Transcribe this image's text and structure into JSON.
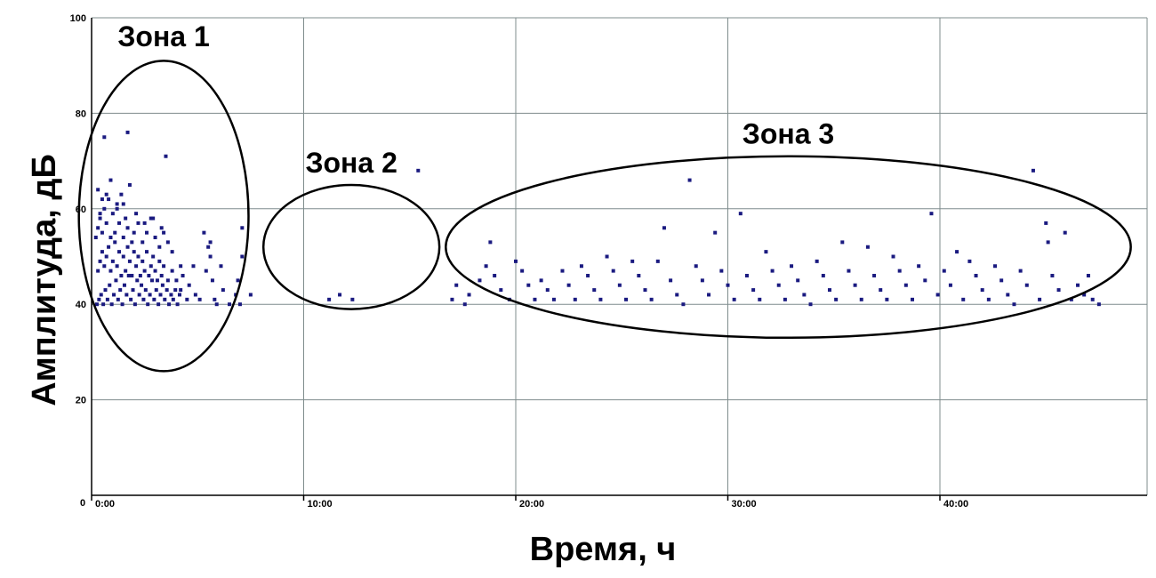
{
  "chart_data": {
    "type": "scatter",
    "xlabel": "Время, ч",
    "ylabel": "Амплитуда, дБ",
    "xlim": [
      0,
      50
    ],
    "ylim": [
      0,
      100
    ],
    "x_ticks": [
      {
        "value": 0,
        "label": "0:00"
      },
      {
        "value": 10,
        "label": "10:00"
      },
      {
        "value": 20,
        "label": "20:00"
      },
      {
        "value": 30,
        "label": "30:00"
      },
      {
        "value": 40,
        "label": "40:00"
      }
    ],
    "y_ticks": [
      {
        "value": 20,
        "label": "20"
      },
      {
        "value": 40,
        "label": "40"
      },
      {
        "value": 60,
        "label": "60"
      },
      {
        "value": 80,
        "label": "80"
      },
      {
        "value": 100,
        "label": "100"
      }
    ],
    "origin_label": "0",
    "grid": true,
    "marker_color": "#1a1a80",
    "zones": [
      {
        "label": "Зона 1",
        "x_range": [
          -0.6,
          7.4
        ],
        "y_range": [
          26,
          91
        ]
      },
      {
        "label": "Зона 2",
        "x_range": [
          8.1,
          16.4
        ],
        "y_range": [
          39,
          65
        ]
      },
      {
        "label": "Зона 3",
        "x_range": [
          16.7,
          49.0
        ],
        "y_range": [
          33,
          71
        ]
      }
    ],
    "series": [
      {
        "points": [
          [
            0.25,
            40
          ],
          [
            0.35,
            41
          ],
          [
            0.45,
            42
          ],
          [
            0.55,
            40
          ],
          [
            0.65,
            43
          ],
          [
            0.75,
            41
          ],
          [
            0.85,
            44
          ],
          [
            0.95,
            40
          ],
          [
            1.05,
            42
          ],
          [
            1.15,
            45
          ],
          [
            1.25,
            41
          ],
          [
            1.35,
            43
          ],
          [
            1.45,
            40
          ],
          [
            1.55,
            44
          ],
          [
            1.65,
            42
          ],
          [
            1.75,
            46
          ],
          [
            1.85,
            41
          ],
          [
            1.95,
            43
          ],
          [
            2.05,
            40
          ],
          [
            2.15,
            45
          ],
          [
            2.25,
            42
          ],
          [
            2.35,
            44
          ],
          [
            2.45,
            41
          ],
          [
            2.55,
            43
          ],
          [
            2.65,
            40
          ],
          [
            2.75,
            42
          ],
          [
            2.85,
            45
          ],
          [
            2.95,
            41
          ],
          [
            3.05,
            43
          ],
          [
            3.15,
            40
          ],
          [
            3.25,
            42
          ],
          [
            3.35,
            44
          ],
          [
            3.45,
            41
          ],
          [
            3.55,
            43
          ],
          [
            3.65,
            40
          ],
          [
            3.75,
            42
          ],
          [
            3.85,
            41
          ],
          [
            3.95,
            43
          ],
          [
            4.05,
            40
          ],
          [
            4.15,
            42
          ],
          [
            0.3,
            47
          ],
          [
            0.4,
            49
          ],
          [
            0.5,
            51
          ],
          [
            0.6,
            48
          ],
          [
            0.7,
            50
          ],
          [
            0.8,
            52
          ],
          [
            0.9,
            47
          ],
          [
            1.0,
            49
          ],
          [
            1.1,
            53
          ],
          [
            1.2,
            48
          ],
          [
            1.3,
            51
          ],
          [
            1.4,
            46
          ],
          [
            1.5,
            50
          ],
          [
            1.6,
            47
          ],
          [
            1.7,
            52
          ],
          [
            1.8,
            49
          ],
          [
            1.9,
            46
          ],
          [
            2.0,
            51
          ],
          [
            2.1,
            48
          ],
          [
            2.2,
            50
          ],
          [
            2.3,
            46
          ],
          [
            2.4,
            49
          ],
          [
            2.5,
            47
          ],
          [
            2.6,
            51
          ],
          [
            2.7,
            46
          ],
          [
            2.8,
            48
          ],
          [
            2.9,
            50
          ],
          [
            3.0,
            47
          ],
          [
            3.1,
            45
          ],
          [
            3.2,
            49
          ],
          [
            3.3,
            46
          ],
          [
            3.4,
            48
          ],
          [
            3.6,
            45
          ],
          [
            3.8,
            47
          ],
          [
            4.0,
            45
          ],
          [
            0.2,
            54
          ],
          [
            0.3,
            56
          ],
          [
            0.4,
            58
          ],
          [
            0.5,
            55
          ],
          [
            0.6,
            60
          ],
          [
            0.7,
            57
          ],
          [
            0.8,
            62
          ],
          [
            0.9,
            54
          ],
          [
            1.0,
            59
          ],
          [
            1.1,
            55
          ],
          [
            1.2,
            61
          ],
          [
            1.3,
            57
          ],
          [
            1.5,
            54
          ],
          [
            1.6,
            58
          ],
          [
            1.7,
            56
          ],
          [
            1.9,
            53
          ],
          [
            2.0,
            55
          ],
          [
            2.2,
            57
          ],
          [
            2.4,
            53
          ],
          [
            2.6,
            55
          ],
          [
            2.8,
            58
          ],
          [
            3.0,
            54
          ],
          [
            3.2,
            52
          ],
          [
            3.4,
            55
          ],
          [
            3.6,
            53
          ],
          [
            3.8,
            51
          ],
          [
            4.2,
            48
          ],
          [
            0.3,
            64
          ],
          [
            0.5,
            62
          ],
          [
            0.7,
            63
          ],
          [
            0.9,
            66
          ],
          [
            1.2,
            60
          ],
          [
            1.5,
            61
          ],
          [
            1.8,
            65
          ],
          [
            2.1,
            59
          ],
          [
            2.5,
            57
          ],
          [
            2.9,
            58
          ],
          [
            3.3,
            56
          ],
          [
            0.6,
            75
          ],
          [
            1.7,
            76
          ],
          [
            3.5,
            71
          ],
          [
            1.4,
            63
          ],
          [
            0.4,
            59
          ],
          [
            4.2,
            43
          ],
          [
            4.3,
            46
          ],
          [
            4.5,
            41
          ],
          [
            4.6,
            44
          ],
          [
            4.8,
            48
          ],
          [
            4.9,
            42
          ],
          [
            5.1,
            41
          ],
          [
            5.3,
            55
          ],
          [
            5.5,
            52
          ],
          [
            5.6,
            50
          ],
          [
            5.7,
            45
          ],
          [
            5.8,
            41
          ],
          [
            5.4,
            47
          ],
          [
            5.6,
            53
          ],
          [
            5.9,
            40
          ],
          [
            6.2,
            43
          ],
          [
            6.5,
            40
          ],
          [
            6.8,
            42
          ],
          [
            7.0,
            40
          ],
          [
            7.1,
            50
          ],
          [
            7.1,
            56
          ],
          [
            7.5,
            42
          ],
          [
            6.9,
            45
          ],
          [
            6.1,
            48
          ],
          [
            11.2,
            41
          ],
          [
            11.7,
            42
          ],
          [
            12.3,
            41
          ],
          [
            15.4,
            68
          ],
          [
            17.0,
            41
          ],
          [
            17.2,
            44
          ],
          [
            17.6,
            40
          ],
          [
            17.8,
            42
          ],
          [
            18.3,
            45
          ],
          [
            18.6,
            48
          ],
          [
            18.8,
            53
          ],
          [
            19.0,
            46
          ],
          [
            19.3,
            43
          ],
          [
            19.7,
            41
          ],
          [
            20.0,
            49
          ],
          [
            20.3,
            47
          ],
          [
            20.6,
            44
          ],
          [
            20.9,
            41
          ],
          [
            21.2,
            45
          ],
          [
            21.5,
            43
          ],
          [
            21.8,
            41
          ],
          [
            22.2,
            47
          ],
          [
            22.5,
            44
          ],
          [
            22.8,
            41
          ],
          [
            23.1,
            48
          ],
          [
            23.4,
            46
          ],
          [
            23.7,
            43
          ],
          [
            24.0,
            41
          ],
          [
            24.3,
            50
          ],
          [
            24.6,
            47
          ],
          [
            24.9,
            44
          ],
          [
            25.2,
            41
          ],
          [
            25.5,
            49
          ],
          [
            25.8,
            46
          ],
          [
            26.1,
            43
          ],
          [
            26.4,
            41
          ],
          [
            26.7,
            49
          ],
          [
            27.0,
            56
          ],
          [
            27.3,
            45
          ],
          [
            27.6,
            42
          ],
          [
            27.9,
            40
          ],
          [
            28.2,
            66
          ],
          [
            28.5,
            48
          ],
          [
            28.8,
            45
          ],
          [
            29.1,
            42
          ],
          [
            29.4,
            55
          ],
          [
            29.7,
            47
          ],
          [
            30.0,
            44
          ],
          [
            30.3,
            41
          ],
          [
            30.6,
            59
          ],
          [
            30.9,
            46
          ],
          [
            31.2,
            43
          ],
          [
            31.5,
            41
          ],
          [
            31.8,
            51
          ],
          [
            32.1,
            47
          ],
          [
            32.4,
            44
          ],
          [
            32.7,
            41
          ],
          [
            33.0,
            48
          ],
          [
            33.3,
            45
          ],
          [
            33.6,
            42
          ],
          [
            33.9,
            40
          ],
          [
            34.2,
            49
          ],
          [
            34.5,
            46
          ],
          [
            34.8,
            43
          ],
          [
            35.1,
            41
          ],
          [
            35.4,
            53
          ],
          [
            35.7,
            47
          ],
          [
            36.0,
            44
          ],
          [
            36.3,
            41
          ],
          [
            36.6,
            52
          ],
          [
            36.9,
            46
          ],
          [
            37.2,
            43
          ],
          [
            37.5,
            41
          ],
          [
            37.8,
            50
          ],
          [
            38.1,
            47
          ],
          [
            38.4,
            44
          ],
          [
            38.7,
            41
          ],
          [
            39.0,
            48
          ],
          [
            39.3,
            45
          ],
          [
            39.6,
            59
          ],
          [
            39.9,
            42
          ],
          [
            40.2,
            47
          ],
          [
            40.5,
            44
          ],
          [
            40.8,
            51
          ],
          [
            41.1,
            41
          ],
          [
            41.4,
            49
          ],
          [
            41.7,
            46
          ],
          [
            42.0,
            43
          ],
          [
            42.3,
            41
          ],
          [
            42.6,
            48
          ],
          [
            42.9,
            45
          ],
          [
            43.2,
            42
          ],
          [
            43.5,
            40
          ],
          [
            43.8,
            47
          ],
          [
            44.1,
            44
          ],
          [
            44.4,
            68
          ],
          [
            44.7,
            41
          ],
          [
            45.0,
            57
          ],
          [
            45.1,
            53
          ],
          [
            45.3,
            46
          ],
          [
            45.6,
            43
          ],
          [
            45.9,
            55
          ],
          [
            46.2,
            41
          ],
          [
            46.5,
            44
          ],
          [
            46.8,
            42
          ],
          [
            47.0,
            46
          ],
          [
            47.2,
            41
          ],
          [
            47.5,
            40
          ]
        ]
      }
    ]
  }
}
